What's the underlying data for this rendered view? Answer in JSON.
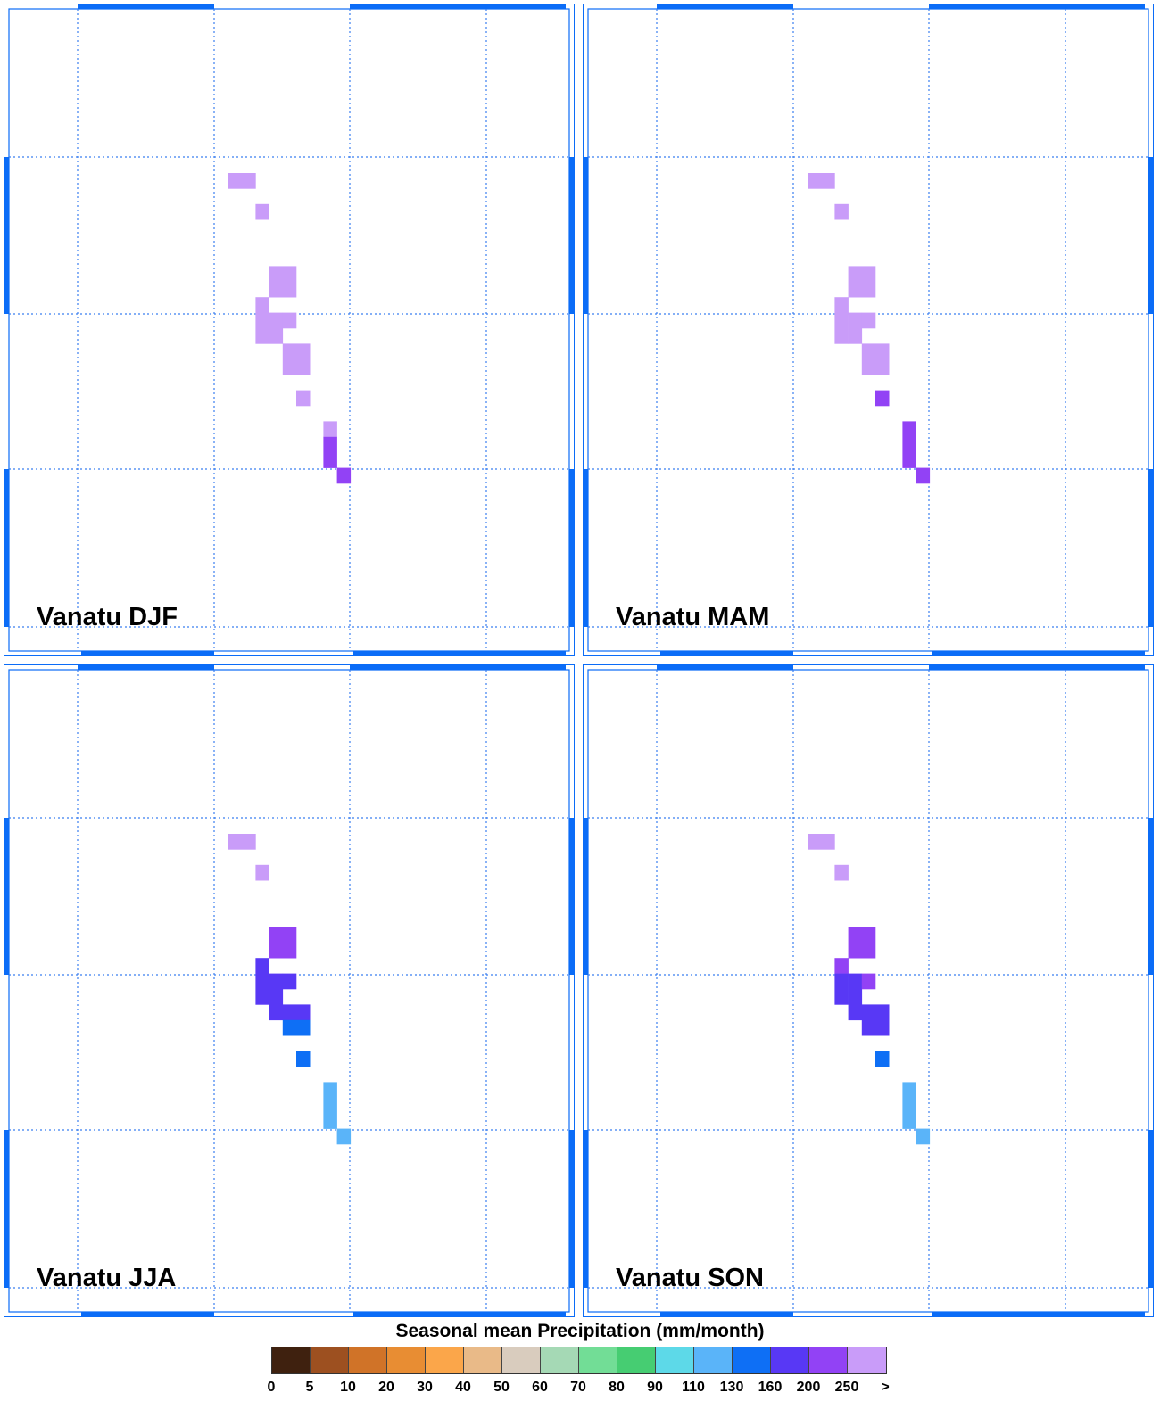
{
  "panels": [
    {
      "label": "Vanatu DJF",
      "cells": [
        {
          "c": 0,
          "r": 0,
          "w": 2,
          "color": "purple_light"
        },
        {
          "c": 2,
          "r": 2,
          "color": "purple_light"
        },
        {
          "c": 3,
          "r": 6,
          "w": 2,
          "h": 2,
          "color": "purple_light"
        },
        {
          "c": 2,
          "r": 8,
          "h": 3,
          "color": "purple_light"
        },
        {
          "c": 3,
          "r": 9,
          "h": 2,
          "color": "purple_light"
        },
        {
          "c": 4,
          "r": 9,
          "color": "purple_light"
        },
        {
          "c": 4,
          "r": 11,
          "w": 2,
          "h": 2,
          "color": "purple_light"
        },
        {
          "c": 5,
          "r": 14,
          "color": "purple_light"
        },
        {
          "c": 7,
          "r": 16,
          "color": "purple_light"
        },
        {
          "c": 7,
          "r": 17,
          "h": 2,
          "color": "purple"
        },
        {
          "c": 8,
          "r": 19,
          "color": "purple"
        }
      ]
    },
    {
      "label": "Vanatu MAM",
      "cells": [
        {
          "c": 0,
          "r": 0,
          "w": 2,
          "color": "purple_light"
        },
        {
          "c": 2,
          "r": 2,
          "color": "purple_light"
        },
        {
          "c": 3,
          "r": 6,
          "w": 2,
          "h": 2,
          "color": "purple_light"
        },
        {
          "c": 2,
          "r": 8,
          "h": 3,
          "color": "purple_light"
        },
        {
          "c": 3,
          "r": 9,
          "h": 2,
          "color": "purple_light"
        },
        {
          "c": 4,
          "r": 9,
          "color": "purple_light"
        },
        {
          "c": 4,
          "r": 11,
          "w": 2,
          "h": 2,
          "color": "purple_light"
        },
        {
          "c": 5,
          "r": 14,
          "color": "purple"
        },
        {
          "c": 7,
          "r": 16,
          "h": 3,
          "color": "purple"
        },
        {
          "c": 8,
          "r": 19,
          "color": "purple"
        }
      ]
    },
    {
      "label": "Vanatu JJA",
      "cells": [
        {
          "c": 0,
          "r": 0,
          "w": 2,
          "color": "purple_light"
        },
        {
          "c": 2,
          "r": 2,
          "color": "purple_light"
        },
        {
          "c": 3,
          "r": 6,
          "w": 2,
          "h": 2,
          "color": "purple"
        },
        {
          "c": 2,
          "r": 8,
          "h": 3,
          "color": "indigo"
        },
        {
          "c": 3,
          "r": 9,
          "h": 3,
          "color": "indigo"
        },
        {
          "c": 4,
          "r": 9,
          "color": "indigo"
        },
        {
          "c": 4,
          "r": 11,
          "w": 2,
          "color": "indigo"
        },
        {
          "c": 4,
          "r": 12,
          "w": 2,
          "color": "blue"
        },
        {
          "c": 5,
          "r": 14,
          "color": "blue"
        },
        {
          "c": 7,
          "r": 16,
          "h": 3,
          "color": "sky"
        },
        {
          "c": 8,
          "r": 19,
          "color": "sky"
        }
      ]
    },
    {
      "label": "Vanatu SON",
      "cells": [
        {
          "c": 0,
          "r": 0,
          "w": 2,
          "color": "purple_light"
        },
        {
          "c": 2,
          "r": 2,
          "color": "purple_light"
        },
        {
          "c": 3,
          "r": 6,
          "w": 2,
          "h": 2,
          "color": "purple"
        },
        {
          "c": 2,
          "r": 8,
          "color": "purple"
        },
        {
          "c": 2,
          "r": 9,
          "h": 2,
          "color": "indigo"
        },
        {
          "c": 3,
          "r": 9,
          "h": 3,
          "color": "indigo"
        },
        {
          "c": 4,
          "r": 9,
          "color": "purple"
        },
        {
          "c": 4,
          "r": 11,
          "w": 2,
          "h": 2,
          "color": "indigo"
        },
        {
          "c": 5,
          "r": 14,
          "color": "blue"
        },
        {
          "c": 7,
          "r": 16,
          "h": 3,
          "color": "sky"
        },
        {
          "c": 8,
          "r": 19,
          "color": "sky"
        }
      ]
    }
  ],
  "colors": {
    "purple_light": "#c99cf9",
    "purple": "#9242f5",
    "indigo": "#5838f5",
    "blue": "#0e6ff5",
    "sky": "#5ab4f9",
    "frame": "#0b6cf7",
    "grid": "#3b7ff0"
  },
  "legend": {
    "title": "Seasonal mean Precipitation (mm/month)",
    "colors": [
      "#3f210f",
      "#9d5020",
      "#d07328",
      "#e88d33",
      "#fba64a",
      "#e9ba88",
      "#d9ccbe",
      "#a5d9b5",
      "#72dd96",
      "#46cd72",
      "#5dd9e8",
      "#5ab4f9",
      "#0e6ff5",
      "#5838f5",
      "#9242f5",
      "#c99cf9"
    ],
    "ticks": [
      "0",
      "5",
      "10",
      "20",
      "30",
      "40",
      "50",
      "60",
      "70",
      "80",
      "90",
      "110",
      "130",
      "160",
      "200",
      "250",
      ">"
    ]
  }
}
